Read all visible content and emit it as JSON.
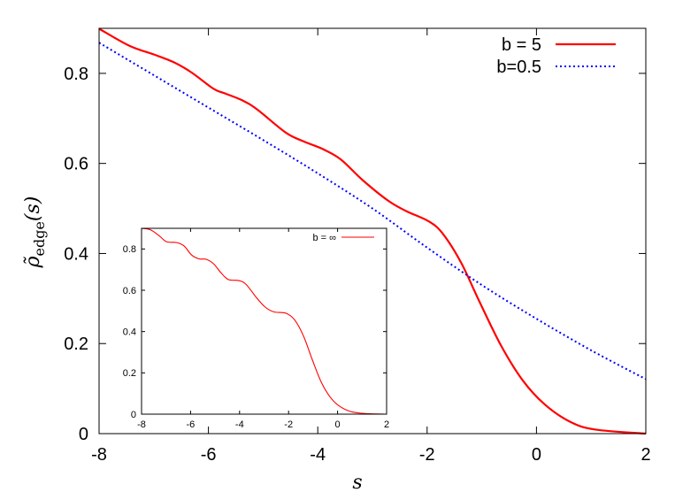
{
  "chart_data": [
    {
      "type": "line",
      "title": "",
      "xlabel": "s",
      "ylabel": "ρ̃edge(s)",
      "ylabel_parts": {
        "base": "ρ̃",
        "sub": "edge",
        "arg": "(s)"
      },
      "xlim": [
        -8,
        2
      ],
      "ylim": [
        0,
        0.9
      ],
      "xticks": [
        "-8",
        "-6",
        "-4",
        "-2",
        "0",
        "2"
      ],
      "yticks": [
        "0",
        "0.2",
        "0.4",
        "0.6",
        "0.8"
      ],
      "grid": false,
      "legend": "top-right",
      "series": [
        {
          "name": "b = 5",
          "color": "#ff0000",
          "style": "solid",
          "x": [
            -8,
            -7.44,
            -7,
            -6.64,
            -6.31,
            -5.91,
            -5.71,
            -5.38,
            -5.11,
            -4.58,
            -4.24,
            -3.91,
            -3.58,
            -3.18,
            -2.71,
            -2.38,
            -1.98,
            -1.72,
            -1.38,
            -1.05,
            -0.65,
            -0.25,
            0.15,
            0.62,
            1.08,
            2
          ],
          "y": [
            0.899,
            0.861,
            0.842,
            0.825,
            0.802,
            0.766,
            0.756,
            0.74,
            0.72,
            0.668,
            0.648,
            0.632,
            0.609,
            0.563,
            0.517,
            0.494,
            0.472,
            0.445,
            0.38,
            0.295,
            0.196,
            0.118,
            0.065,
            0.026,
            0.009,
            0.0
          ]
        },
        {
          "name": "b=0.5",
          "color": "#0000ff",
          "style": "dotted",
          "x": [
            -8,
            -7,
            -6,
            -5,
            -4,
            -3,
            -2,
            -1,
            0,
            1,
            2
          ],
          "y": [
            0.868,
            0.796,
            0.724,
            0.652,
            0.578,
            0.5,
            0.413,
            0.33,
            0.255,
            0.185,
            0.121
          ]
        }
      ]
    },
    {
      "type": "line",
      "title": "",
      "xlabel": "",
      "ylabel": "",
      "xlim": [
        -8,
        2
      ],
      "ylim": [
        0,
        0.9
      ],
      "xticks": [
        "-8",
        "-6",
        "-4",
        "-2",
        "0",
        "2"
      ],
      "yticks": [
        "0",
        "0.2",
        "0.4",
        "0.6",
        "0.8"
      ],
      "grid": false,
      "legend": "top-right",
      "inset": true,
      "series": [
        {
          "name": "b = ∞",
          "color": "#ff0000",
          "style": "solid",
          "x": [
            -8,
            -7.64,
            -7.28,
            -6.98,
            -6.56,
            -6.26,
            -5.96,
            -5.66,
            -5.36,
            -5.06,
            -4.76,
            -4.46,
            -4.03,
            -3.73,
            -3.31,
            -2.95,
            -2.59,
            -2.11,
            -1.75,
            -1.39,
            -1.03,
            -0.67,
            -0.31,
            0.05,
            0.53,
            1.13,
            2
          ],
          "y": [
            0.9,
            0.893,
            0.864,
            0.835,
            0.831,
            0.814,
            0.771,
            0.752,
            0.75,
            0.728,
            0.685,
            0.652,
            0.647,
            0.628,
            0.564,
            0.518,
            0.495,
            0.489,
            0.456,
            0.378,
            0.263,
            0.156,
            0.084,
            0.041,
            0.013,
            0.003,
            0.0
          ]
        }
      ]
    }
  ]
}
